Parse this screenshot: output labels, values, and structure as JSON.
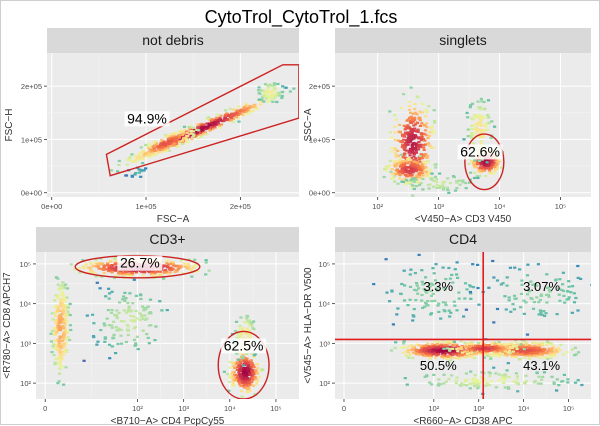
{
  "figure": {
    "title": "CytoTrol_CytoTrol_1.fcs"
  },
  "chart_data": [
    {
      "type": "scatter",
      "panel": "not debris",
      "xlabel": "FSC−A",
      "ylabel": "FSC−H",
      "xlim": [
        -5000,
        262144
      ],
      "ylim": [
        -8000,
        262144
      ],
      "x_ticks": [
        {
          "v": 0,
          "t": "0e+00"
        },
        {
          "v": 100000,
          "t": "1e+05"
        },
        {
          "v": 200000,
          "t": "2e+05"
        }
      ],
      "y_ticks": [
        {
          "v": 0,
          "t": "0e+00"
        },
        {
          "v": 100000,
          "t": "1e+05"
        },
        {
          "v": 200000,
          "t": "2e+05"
        }
      ],
      "gate": {
        "shape": "polygon",
        "points": [
          [
            58000,
            72000
          ],
          [
            62000,
            32000
          ],
          [
            262000,
            140000
          ],
          [
            262000,
            240000
          ],
          [
            245000,
            240000
          ]
        ],
        "percent": "94.9%",
        "label_at": [
          101000,
          132000
        ]
      }
    },
    {
      "type": "scatter",
      "panel": "singlets",
      "xlabel": "<V450−A> CD3 V450",
      "ylabel": "SSC−A",
      "x_ticks": [
        {
          "v": 2,
          "t": "10²"
        },
        {
          "v": 3,
          "t": "10³"
        },
        {
          "v": 4,
          "t": "10⁴"
        },
        {
          "v": 5,
          "t": "10⁵"
        }
      ],
      "y_ticks": [
        {
          "v": 0,
          "t": "0e+00"
        },
        {
          "v": 100000,
          "t": "1e+05"
        },
        {
          "v": 200000,
          "t": "2e+05"
        }
      ],
      "gate": {
        "shape": "ellipse",
        "center": [
          3.75,
          58000
        ],
        "radii": [
          0.32,
          52000
        ],
        "percent": "62.6%",
        "label_at": [
          3.68,
          70000
        ]
      }
    },
    {
      "type": "scatter",
      "panel": "CD3+",
      "xlabel": "<B710−A> CD4 PcpCy55",
      "ylabel": "<R780−A> CD8 APCH7",
      "x_ticks": [
        {
          "v": 0,
          "t": "0"
        },
        {
          "v": 2,
          "t": "10²"
        },
        {
          "v": 3,
          "t": "10³"
        },
        {
          "v": 4,
          "t": "10⁴"
        },
        {
          "v": 5,
          "t": "10⁵"
        }
      ],
      "y_ticks": [
        {
          "v": 2,
          "t": "10²"
        },
        {
          "v": 3,
          "t": "10³"
        },
        {
          "v": 4,
          "t": "10⁴"
        },
        {
          "v": 5,
          "t": "10⁵"
        }
      ],
      "gates": [
        {
          "shape": "ellipse",
          "center": [
            2.0,
            4.93
          ],
          "radii": [
            1.35,
            0.28
          ],
          "percent": "26.7%",
          "label_at": [
            2.05,
            4.93
          ]
        },
        {
          "shape": "ellipse",
          "center": [
            4.3,
            2.45
          ],
          "radii": [
            0.55,
            0.85
          ],
          "percent": "62.5%",
          "label_at": [
            4.3,
            2.85
          ]
        }
      ]
    },
    {
      "type": "scatter",
      "panel": "CD4",
      "xlabel": "<R660−A> CD38 APC",
      "ylabel": "<V545−A> HLA−DR V500",
      "x_ticks": [
        {
          "v": 0,
          "t": "0"
        },
        {
          "v": 2,
          "t": "10²"
        },
        {
          "v": 3,
          "t": "10³"
        },
        {
          "v": 4,
          "t": "10⁴"
        },
        {
          "v": 5,
          "t": "10⁵"
        }
      ],
      "y_ticks": [
        {
          "v": 2,
          "t": "10²"
        },
        {
          "v": 3,
          "t": "10³"
        },
        {
          "v": 4,
          "t": "10⁴"
        },
        {
          "v": 5,
          "t": "10⁵"
        }
      ],
      "quadrant": {
        "x": 3.1,
        "y": 3.1
      },
      "quadrant_percents": [
        {
          "percent": "3.3%",
          "label_at": [
            2.1,
            4.45
          ]
        },
        {
          "percent": "3.07%",
          "label_at": [
            4.4,
            4.45
          ]
        },
        {
          "percent": "50.5%",
          "label_at": [
            2.1,
            2.45
          ]
        },
        {
          "percent": "43.1%",
          "label_at": [
            4.4,
            2.45
          ]
        }
      ]
    }
  ],
  "colors": {
    "strip": "#d9d9d9",
    "panel_bg": "#ebebeb",
    "grid_major": "#ffffff",
    "grid_minor": "#f4f4f4",
    "gate": "#cc2222",
    "quadrant": "#e31a1c",
    "density_palette": [
      "#5e4fa2",
      "#3288bd",
      "#66c2a5",
      "#abdda4",
      "#e6f598",
      "#fee08b",
      "#fdae61",
      "#f46d43",
      "#d53e4f",
      "#9e0142"
    ]
  }
}
